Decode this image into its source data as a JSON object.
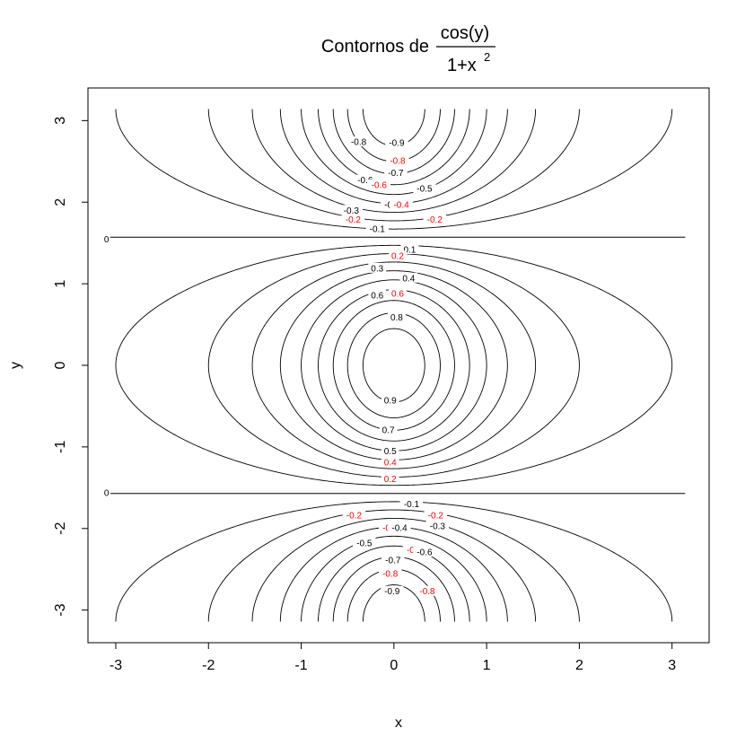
{
  "chart_data": {
    "type": "contour",
    "function": "cos(y)/(1+x^2)",
    "title": {
      "prefix": "Contornos de",
      "numerator": "cos(y)",
      "denominator_base": "1+x",
      "denominator_exponent": "2"
    },
    "xlabel": "x",
    "ylabel": "y",
    "xlim": [
      -3.3,
      3.4
    ],
    "ylim": [
      -3.4,
      3.4
    ],
    "x_ticks": [
      "-3",
      "-2",
      "-1",
      "0",
      "1",
      "2",
      "3"
    ],
    "y_ticks": [
      "-3",
      "-2",
      "-1",
      "0",
      "1",
      "2",
      "3"
    ],
    "domain": {
      "x": [
        -3.1416,
        3.1416
      ],
      "y": [
        -3.1416,
        3.1416
      ]
    },
    "levels": [
      -0.9,
      -0.8,
      -0.7,
      -0.6,
      -0.5,
      -0.4,
      -0.3,
      -0.2,
      -0.1,
      0,
      0.1,
      0.2,
      0.3,
      0.4,
      0.5,
      0.6,
      0.7,
      0.8,
      0.9
    ],
    "highlight_color": "#ff0000",
    "line_color": "#000000",
    "contour_labels": [
      {
        "text": "-0.9",
        "x": 0.03,
        "y": 2.73,
        "color": "black"
      },
      {
        "text": "-0.8",
        "x": 0.04,
        "y": 2.51,
        "color": "red"
      },
      {
        "text": "-0.8",
        "x": -0.38,
        "y": 2.74,
        "color": "black"
      },
      {
        "text": "-0.7",
        "x": 0.02,
        "y": 2.36,
        "color": "black"
      },
      {
        "text": "-0.6",
        "x": -0.31,
        "y": 2.27,
        "color": "black"
      },
      {
        "text": "-0.6",
        "x": -0.16,
        "y": 2.21,
        "color": "red"
      },
      {
        "text": "-0.5",
        "x": 0.33,
        "y": 2.17,
        "color": "black"
      },
      {
        "text": "-0.4",
        "x": -0.02,
        "y": 1.97,
        "color": "black"
      },
      {
        "text": "-0.4",
        "x": 0.08,
        "y": 1.97,
        "color": "red"
      },
      {
        "text": "-0.3",
        "x": -0.46,
        "y": 1.9,
        "color": "black"
      },
      {
        "text": "-0.2",
        "x": -0.44,
        "y": 1.79,
        "color": "red"
      },
      {
        "text": "-0.2",
        "x": 0.44,
        "y": 1.79,
        "color": "red"
      },
      {
        "text": "-0.1",
        "x": -0.18,
        "y": 1.67,
        "color": "black"
      },
      {
        "text": "0",
        "x": -3.1,
        "y": 1.545,
        "color": "black"
      },
      {
        "text": "0.1",
        "x": 0.17,
        "y": 1.42,
        "color": "black"
      },
      {
        "text": "0.2",
        "x": 0.04,
        "y": 1.34,
        "color": "red"
      },
      {
        "text": "0.3",
        "x": -0.18,
        "y": 1.19,
        "color": "black"
      },
      {
        "text": "0.4",
        "x": 0.16,
        "y": 1.07,
        "color": "black"
      },
      {
        "text": "0.6",
        "x": -0.18,
        "y": 0.86,
        "color": "black"
      },
      {
        "text": "0.6",
        "x": 0.04,
        "y": 0.88,
        "color": "red"
      },
      {
        "text": "0.8",
        "x": 0.03,
        "y": 0.59,
        "color": "black"
      },
      {
        "text": "0.9",
        "x": -0.04,
        "y": -0.43,
        "color": "black"
      },
      {
        "text": "0.7",
        "x": -0.06,
        "y": -0.79,
        "color": "black"
      },
      {
        "text": "0.5",
        "x": -0.04,
        "y": -1.05,
        "color": "black"
      },
      {
        "text": "0.4",
        "x": -0.04,
        "y": -1.19,
        "color": "red"
      },
      {
        "text": "0.2",
        "x": -0.04,
        "y": -1.39,
        "color": "red"
      },
      {
        "text": "0",
        "x": -3.1,
        "y": -1.565,
        "color": "black"
      },
      {
        "text": "-0.1",
        "x": 0.19,
        "y": -1.7,
        "color": "black"
      },
      {
        "text": "-0.2",
        "x": -0.43,
        "y": -1.84,
        "color": "red"
      },
      {
        "text": "-0.2",
        "x": 0.45,
        "y": -1.84,
        "color": "red"
      },
      {
        "text": "-0.3",
        "x": 0.47,
        "y": -1.97,
        "color": "black"
      },
      {
        "text": "-0.4",
        "x": -0.04,
        "y": -1.99,
        "color": "red"
      },
      {
        "text": "-0.4",
        "x": 0.06,
        "y": -1.99,
        "color": "black"
      },
      {
        "text": "-0.5",
        "x": -0.32,
        "y": -2.18,
        "color": "black"
      },
      {
        "text": "-0.6",
        "x": 0.22,
        "y": -2.26,
        "color": "red"
      },
      {
        "text": "-0.6",
        "x": 0.33,
        "y": -2.29,
        "color": "black"
      },
      {
        "text": "-0.7",
        "x": -0.01,
        "y": -2.39,
        "color": "black"
      },
      {
        "text": "-0.8",
        "x": -0.04,
        "y": -2.55,
        "color": "red"
      },
      {
        "text": "-0.8",
        "x": 0.36,
        "y": -2.77,
        "color": "red"
      },
      {
        "text": "-0.9",
        "x": -0.02,
        "y": -2.77,
        "color": "black"
      }
    ]
  }
}
